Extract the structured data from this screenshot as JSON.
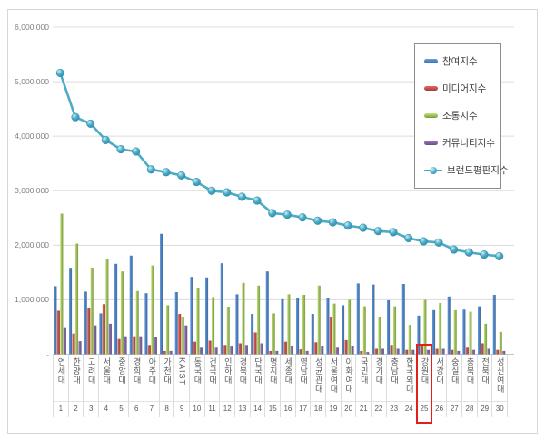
{
  "chart_data": {
    "type": "bar+line",
    "title": "",
    "categories": [
      "연세대",
      "한양대",
      "고려대",
      "서울대",
      "중앙대",
      "경희대",
      "아주대",
      "가천대",
      "KAIST",
      "동국대",
      "건국대",
      "인하대",
      "경북대",
      "단국대",
      "명지대",
      "세종대",
      "영남대",
      "성균관대",
      "서울여대",
      "이화여대",
      "국민대",
      "경기대",
      "충남대",
      "한국외대",
      "강원대",
      "서강대",
      "숭실대",
      "충북대",
      "전북대",
      "성신여대"
    ],
    "ranks": [
      "1",
      "2",
      "3",
      "4",
      "5",
      "6",
      "7",
      "8",
      "9",
      "10",
      "11",
      "12",
      "13",
      "14",
      "15",
      "16",
      "17",
      "18",
      "19",
      "20",
      "21",
      "22",
      "23",
      "24",
      "25",
      "26",
      "27",
      "28",
      "29",
      "30"
    ],
    "series": [
      {
        "name": "참여지수",
        "type": "bar",
        "color": "#4F81BD",
        "values": [
          1250000,
          1570000,
          1150000,
          750000,
          1660000,
          1810000,
          1120000,
          2210000,
          1140000,
          1420000,
          1410000,
          1670000,
          1100000,
          740000,
          1520000,
          1010000,
          1030000,
          740000,
          1040000,
          900000,
          1300000,
          1280000,
          990000,
          1290000,
          710000,
          810000,
          1060000,
          820000,
          880000,
          1090000
        ]
      },
      {
        "name": "미디어지수",
        "type": "bar",
        "color": "#C0504D",
        "values": [
          800000,
          380000,
          840000,
          920000,
          280000,
          330000,
          170000,
          60000,
          740000,
          230000,
          250000,
          170000,
          200000,
          400000,
          60000,
          230000,
          90000,
          220000,
          690000,
          260000,
          60000,
          100000,
          170000,
          80000,
          170000,
          100000,
          80000,
          120000,
          200000,
          80000
        ]
      },
      {
        "name": "소통지수",
        "type": "bar",
        "color": "#9BBB59",
        "values": [
          2580000,
          2030000,
          1580000,
          1750000,
          1520000,
          1160000,
          1630000,
          900000,
          680000,
          1210000,
          1050000,
          860000,
          1310000,
          1260000,
          750000,
          1100000,
          1090000,
          1260000,
          930000,
          1000000,
          880000,
          690000,
          880000,
          540000,
          1000000,
          940000,
          810000,
          780000,
          560000,
          410000
        ]
      },
      {
        "name": "커뮤니티지수",
        "type": "bar",
        "color": "#8064A2",
        "values": [
          480000,
          240000,
          530000,
          560000,
          330000,
          330000,
          310000,
          60000,
          530000,
          120000,
          120000,
          140000,
          170000,
          200000,
          60000,
          150000,
          60000,
          140000,
          120000,
          150000,
          40000,
          100000,
          100000,
          80000,
          80000,
          100000,
          60000,
          80000,
          100000,
          60000
        ]
      },
      {
        "name": "브랜드평판지수",
        "type": "line",
        "color": "#4BACC6",
        "values": [
          5160000,
          4350000,
          4230000,
          3930000,
          3760000,
          3720000,
          3390000,
          3340000,
          3280000,
          3160000,
          3000000,
          2970000,
          2890000,
          2820000,
          2590000,
          2560000,
          2510000,
          2450000,
          2420000,
          2360000,
          2320000,
          2260000,
          2240000,
          2130000,
          2070000,
          2050000,
          1920000,
          1870000,
          1830000,
          1800000
        ]
      }
    ],
    "y_axis": {
      "min": 0,
      "max": 6000000,
      "tick_interval": 1000000,
      "tick_labels_top_down": [
        "6,000,000",
        "5,000,000",
        "4,000,000",
        "3,000,000",
        "2,000,000",
        "1,000,000",
        "-"
      ]
    },
    "grid": true,
    "legend_position": "inside-top-right",
    "highlight": {
      "rank": "25",
      "category": "강원대",
      "box_color": "#e0201b"
    }
  },
  "colors": {
    "grid": "#dcdcdc",
    "axis_text": "#7f7f7f",
    "category_text": "#595959",
    "legend_text": "#3f3f3f",
    "frame_border": "#d6d6d6"
  }
}
